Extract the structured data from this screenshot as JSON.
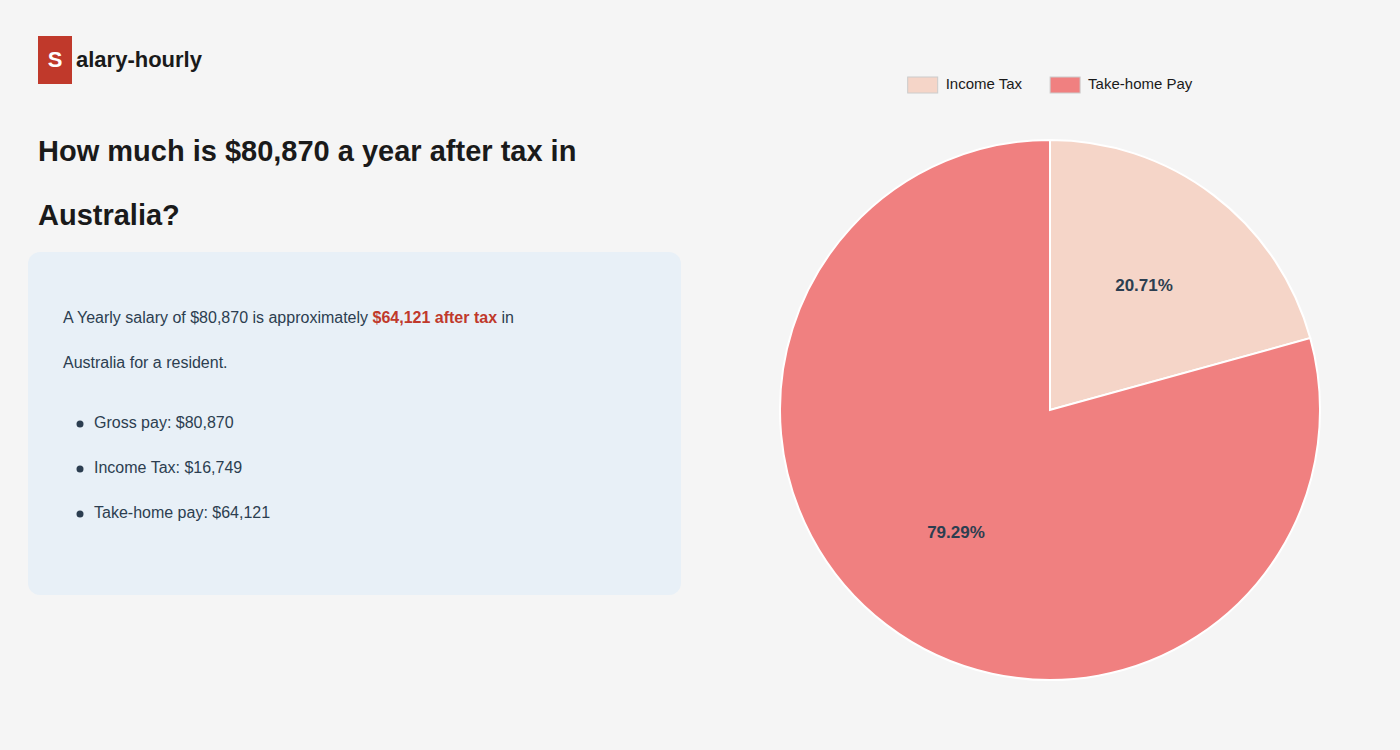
{
  "chart_data": {
    "type": "pie",
    "title": "How much is $80,870 a year after tax in Australia?",
    "annotations": [
      "S",
      "alary-hourly",
      "A Yearly salary of $80,870 is approximately ",
      "$64,121 after tax",
      " in",
      "Australia for a resident.",
      "Gross pay: $80,870",
      "Income Tax: $16,749",
      "Take-home pay: $64,121"
    ],
    "categories": [
      "Income Tax",
      "Take-home Pay"
    ],
    "values": [
      20.71,
      79.29
    ],
    "value_labels": [
      "20.71%",
      "79.29%"
    ],
    "colors": [
      "#f5d5c8",
      "#f08080"
    ],
    "data_labels": true,
    "legend": "top"
  }
}
